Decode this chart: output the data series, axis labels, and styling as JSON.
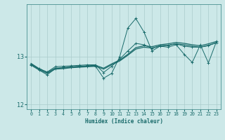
{
  "xlabel": "Humidex (Indice chaleur)",
  "x_values": [
    0,
    1,
    2,
    3,
    4,
    5,
    6,
    7,
    8,
    9,
    10,
    11,
    12,
    13,
    14,
    15,
    16,
    17,
    18,
    19,
    20,
    21,
    22,
    23
  ],
  "line1_y": [
    12.82,
    12.72,
    12.62,
    12.75,
    12.77,
    12.78,
    12.79,
    12.8,
    12.8,
    12.55,
    12.65,
    13.0,
    13.6,
    13.8,
    13.52,
    13.12,
    13.22,
    13.2,
    13.25,
    13.05,
    12.88,
    13.25,
    12.87,
    13.32
  ],
  "line2_y": [
    12.84,
    12.75,
    12.68,
    12.79,
    12.8,
    12.81,
    12.82,
    12.83,
    12.83,
    12.67,
    12.8,
    12.95,
    13.12,
    13.28,
    13.25,
    13.18,
    13.23,
    13.24,
    13.27,
    13.22,
    13.2,
    13.2,
    13.23,
    13.3
  ],
  "line3_y": [
    12.84,
    12.73,
    12.65,
    12.74,
    12.75,
    12.77,
    12.78,
    12.79,
    12.8,
    12.74,
    12.83,
    12.91,
    13.03,
    13.16,
    13.2,
    13.18,
    13.22,
    13.24,
    13.27,
    13.25,
    13.22,
    13.2,
    13.24,
    13.29
  ],
  "line4_y": [
    12.86,
    12.75,
    12.67,
    12.76,
    12.77,
    12.79,
    12.8,
    12.81,
    12.82,
    12.76,
    12.85,
    12.93,
    13.05,
    13.19,
    13.23,
    13.21,
    13.25,
    13.27,
    13.3,
    13.28,
    13.25,
    13.23,
    13.27,
    13.32
  ],
  "ylim": [
    11.9,
    14.1
  ],
  "xlim": [
    -0.5,
    23.5
  ],
  "yticks": [
    12,
    13
  ],
  "xticks": [
    0,
    1,
    2,
    3,
    4,
    5,
    6,
    7,
    8,
    9,
    10,
    11,
    12,
    13,
    14,
    15,
    16,
    17,
    18,
    19,
    20,
    21,
    22,
    23
  ],
  "bg_color": "#cce8e8",
  "grid_color": "#aacccc",
  "line_color": "#1a6b6b",
  "axis_color": "#4a9090",
  "tick_color": "#1a6b6b",
  "label_color": "#1a6b6b"
}
